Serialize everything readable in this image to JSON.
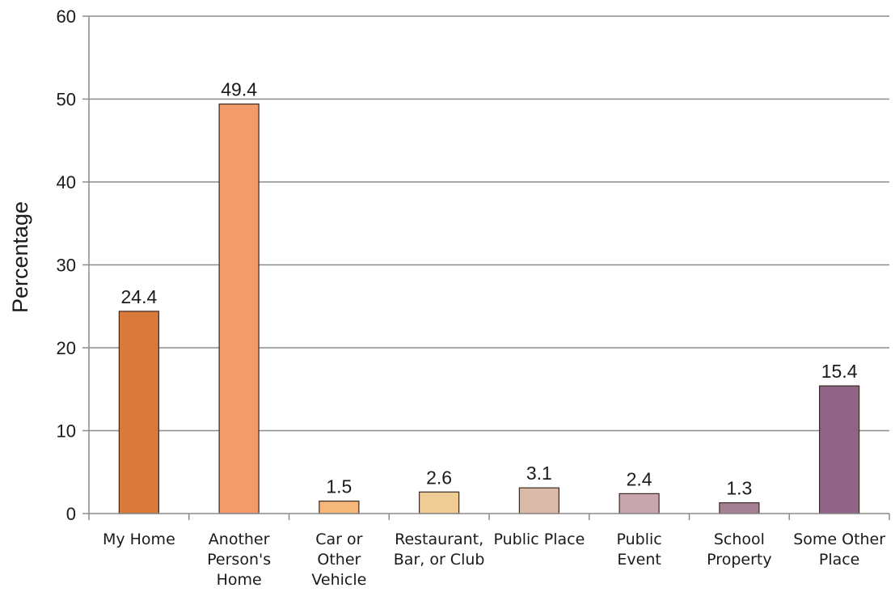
{
  "chart_data": {
    "type": "bar",
    "title": "",
    "xlabel": "",
    "ylabel": "Percentage",
    "ylim": [
      0,
      60
    ],
    "yticks": [
      0,
      10,
      20,
      30,
      40,
      50,
      60
    ],
    "grid": true,
    "categories": [
      [
        "My Home"
      ],
      [
        "Another",
        "Person's",
        "Home"
      ],
      [
        "Car or",
        "Other",
        "Vehicle"
      ],
      [
        "Restaurant,",
        "Bar, or Club"
      ],
      [
        "Public Place"
      ],
      [
        "Public",
        "Event"
      ],
      [
        "School",
        "Property"
      ],
      [
        "Some Other",
        "Place"
      ]
    ],
    "values": [
      24.4,
      49.4,
      1.5,
      2.6,
      3.1,
      2.4,
      1.3,
      15.4
    ],
    "value_labels": [
      "24.4",
      "49.4",
      "1.5",
      "2.6",
      "3.1",
      "2.4",
      "1.3",
      "15.4"
    ],
    "colors": [
      "#d97a3c",
      "#f29b6b",
      "#f5b77a",
      "#f0cc95",
      "#dbb9a9",
      "#c8a6ae",
      "#a48192",
      "#8f6487"
    ]
  }
}
